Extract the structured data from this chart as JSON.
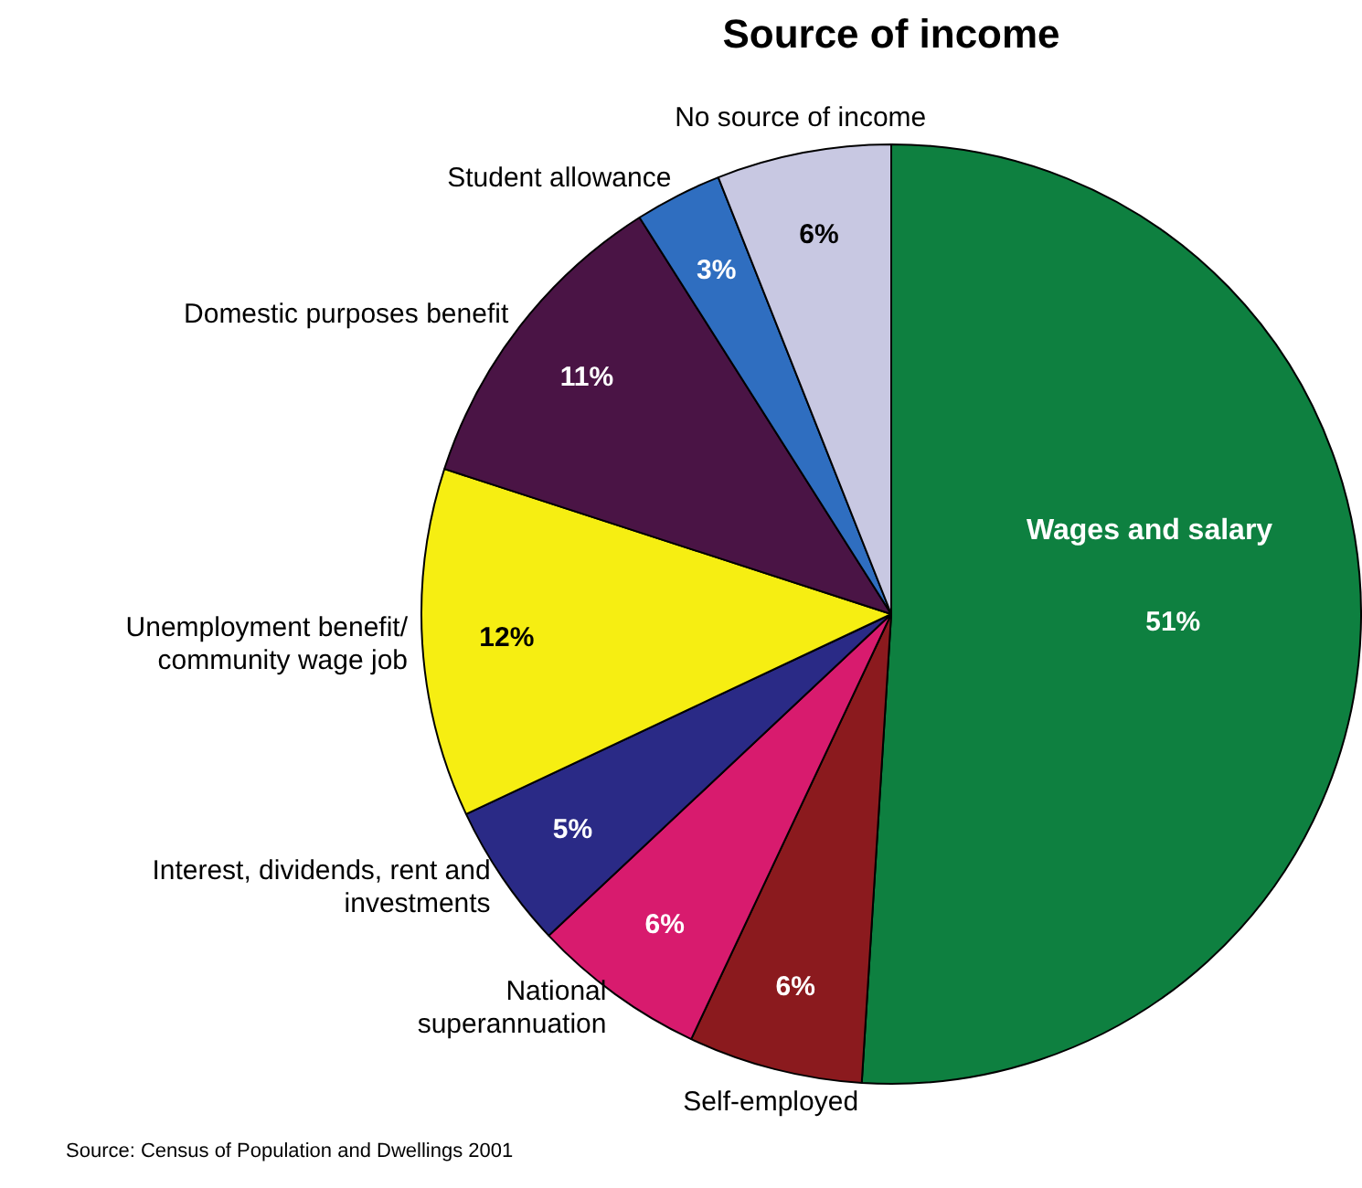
{
  "chart_data": {
    "type": "pie",
    "title": "Source of income",
    "categories": [
      "Wages and salary",
      "Self-employed",
      "National\nsuperannuation",
      "Interest, dividends, rent and\ninvestments",
      "Unemployment benefit/\ncommunity wage job",
      "Domestic purposes benefit",
      "Student allowance",
      "No source of income"
    ],
    "values": [
      51,
      6,
      6,
      5,
      12,
      11,
      3,
      6
    ],
    "colors": [
      "#0e8040",
      "#8b1a1e",
      "#d81b6e",
      "#2a2a86",
      "#f6ee12",
      "#4a1445",
      "#2f6ec0",
      "#c8c8e2"
    ],
    "value_labels": [
      "51%",
      "6%",
      "6%",
      "5%",
      "12%",
      "11%",
      "3%",
      "6%"
    ],
    "legend": false,
    "annotations": [
      "Source: Census of Population and Dwellings 2001"
    ]
  }
}
